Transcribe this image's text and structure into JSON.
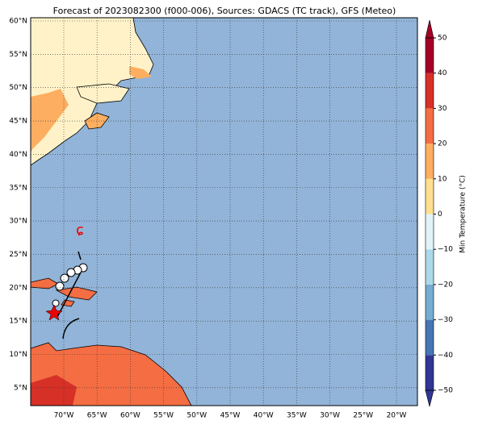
{
  "title": "Forecast of 2023082300 (f000-006), Sources: GDACS (TC track), GFS (Meteo)",
  "map": {
    "lat_ticks": [
      {
        "value": 60,
        "label": "60°N"
      },
      {
        "value": 55,
        "label": "55°N"
      },
      {
        "value": 50,
        "label": "50°N"
      },
      {
        "value": 45,
        "label": "45°N"
      },
      {
        "value": 40,
        "label": "40°N"
      },
      {
        "value": 35,
        "label": "35°N"
      },
      {
        "value": 30,
        "label": "30°N"
      },
      {
        "value": 25,
        "label": "25°N"
      },
      {
        "value": 20,
        "label": "20°N"
      },
      {
        "value": 15,
        "label": "15°N"
      },
      {
        "value": 10,
        "label": "10°N"
      },
      {
        "value": 5,
        "label": "5°N"
      }
    ],
    "lon_ticks": [
      {
        "value": -70,
        "label": "70°W"
      },
      {
        "value": -65,
        "label": "65°W"
      },
      {
        "value": -60,
        "label": "60°W"
      },
      {
        "value": -55,
        "label": "55°W"
      },
      {
        "value": -50,
        "label": "50°W"
      },
      {
        "value": -45,
        "label": "45°W"
      },
      {
        "value": -40,
        "label": "40°W"
      },
      {
        "value": -35,
        "label": "35°W"
      },
      {
        "value": -30,
        "label": "30°W"
      },
      {
        "value": -25,
        "label": "25°W"
      },
      {
        "value": -20,
        "label": "20°W"
      }
    ]
  },
  "colorbar": {
    "label": "Min Temperature (°C)",
    "lim": [
      -50,
      50
    ],
    "ticks": [
      50,
      40,
      30,
      20,
      10,
      0,
      {
        "value": -10,
        "label": "−10"
      },
      {
        "value": -20,
        "label": "−20"
      },
      {
        "value": -30,
        "label": "−30"
      },
      {
        "value": -40,
        "label": "−40"
      },
      {
        "value": -50,
        "label": "−50"
      }
    ],
    "colors": [
      "#313695",
      "#4575b4",
      "#74add1",
      "#abd9e9",
      "#e0f3f8",
      "#fee090",
      "#fdae61",
      "#f46d43",
      "#d73027",
      "#a50026"
    ]
  }
}
